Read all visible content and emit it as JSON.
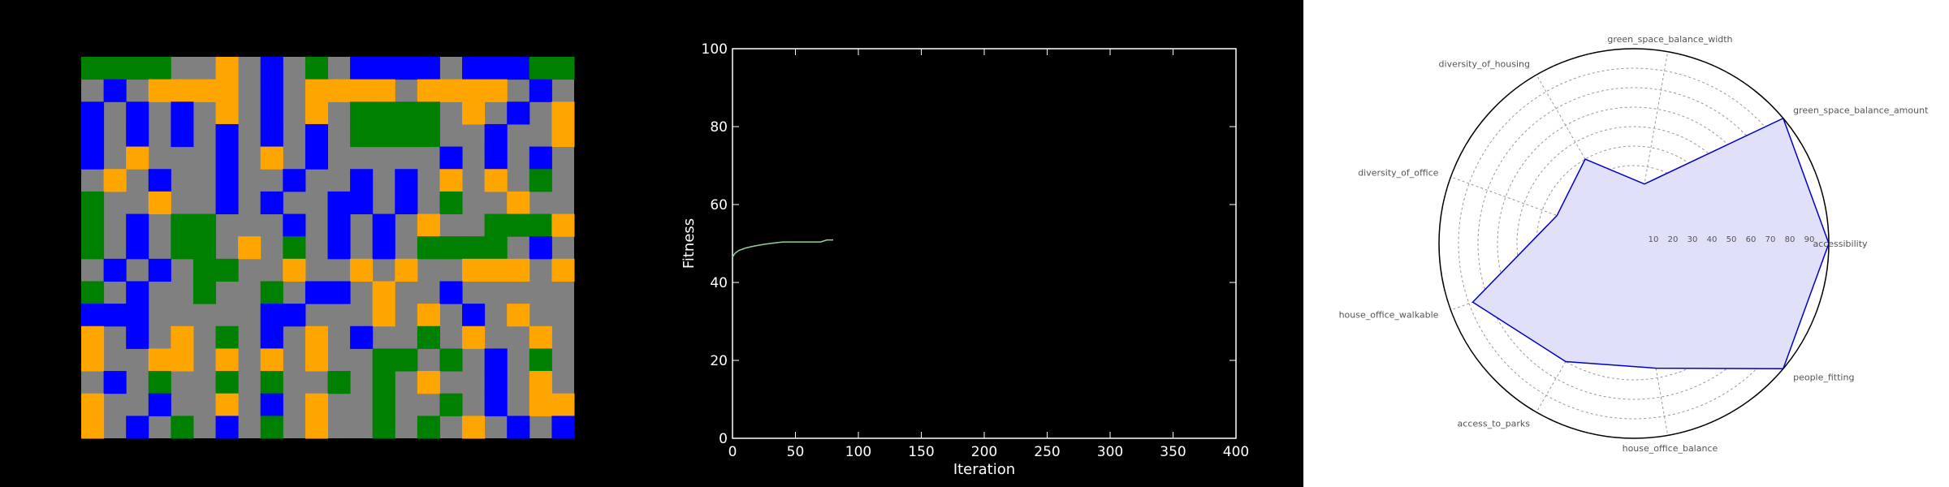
{
  "chart_data": [
    {
      "type": "heatmap",
      "grid_rows": 17,
      "grid_cols": 22,
      "colors": {
        "road": "#808080",
        "0": "#0000ff",
        "1": "#ffa500",
        "2": "#008000"
      },
      "cells": [
        "2222..1.0.2.0000.00022",
        ".0.1111.0.1111.1111.0.",
        "0.0.0.1.0.1.2222.1.0.1",
        "0.0.0.0.0.0.2222..0..1",
        "0.1...0.1.0.....0.0.0.",
        ".1.0..0..0..0.0.1.1.2.",
        "2..1..0.0..00.0.2..1..",
        "2.0.22...0.0.0.1..2221",
        "2.0.22.1.2.0.0.2222.0.",
        ".0.0.22..1..1.1..111.1",
        "2.0..2..2.00.1..0.....",
        "000.....00...1.1.0.1..",
        "1.0.1.2.0.1.0..2.1..1.",
        "1..11.1.1.1..22.2.0.2.",
        ".0.2..2.2..2.2.1..0.1.",
        "1..0..1.0.1..2..2.0.11",
        "1.0.2.0.2.1..2.2.1.0.0"
      ]
    },
    {
      "type": "line",
      "x": [
        0,
        2,
        5,
        10,
        15,
        20,
        25,
        30,
        35,
        40,
        50,
        60,
        70,
        75,
        80
      ],
      "y": [
        46.5,
        47.5,
        48.2,
        48.8,
        49.2,
        49.5,
        49.8,
        50.0,
        50.2,
        50.4,
        50.4,
        50.4,
        50.4,
        50.9,
        50.9
      ],
      "series_color": "#8fd19e",
      "xlabel": "Iteration",
      "ylabel": "Fitness",
      "xlim": [
        0,
        400
      ],
      "ylim": [
        0,
        100
      ],
      "xticks": [
        0,
        50,
        100,
        150,
        200,
        250,
        300,
        350,
        400
      ],
      "yticks": [
        0,
        20,
        40,
        60,
        80,
        100
      ]
    },
    {
      "type": "radar",
      "categories": [
        "accessibility",
        "green_space_balance_amount",
        "green_space_balance_width",
        "diversity_of_housing",
        "diversity_of_office",
        "house_office_walkable",
        "access_to_parks",
        "house_office_balance",
        "people_fitting"
      ],
      "values": [
        100,
        100,
        31,
        50,
        42,
        88,
        70,
        65,
        100
      ],
      "rlim": [
        0,
        100
      ],
      "rticks": [
        10,
        20,
        30,
        40,
        50,
        60,
        70,
        80,
        90
      ],
      "line_color": "#0000cc",
      "fill_color": "#e0e0f8"
    }
  ]
}
